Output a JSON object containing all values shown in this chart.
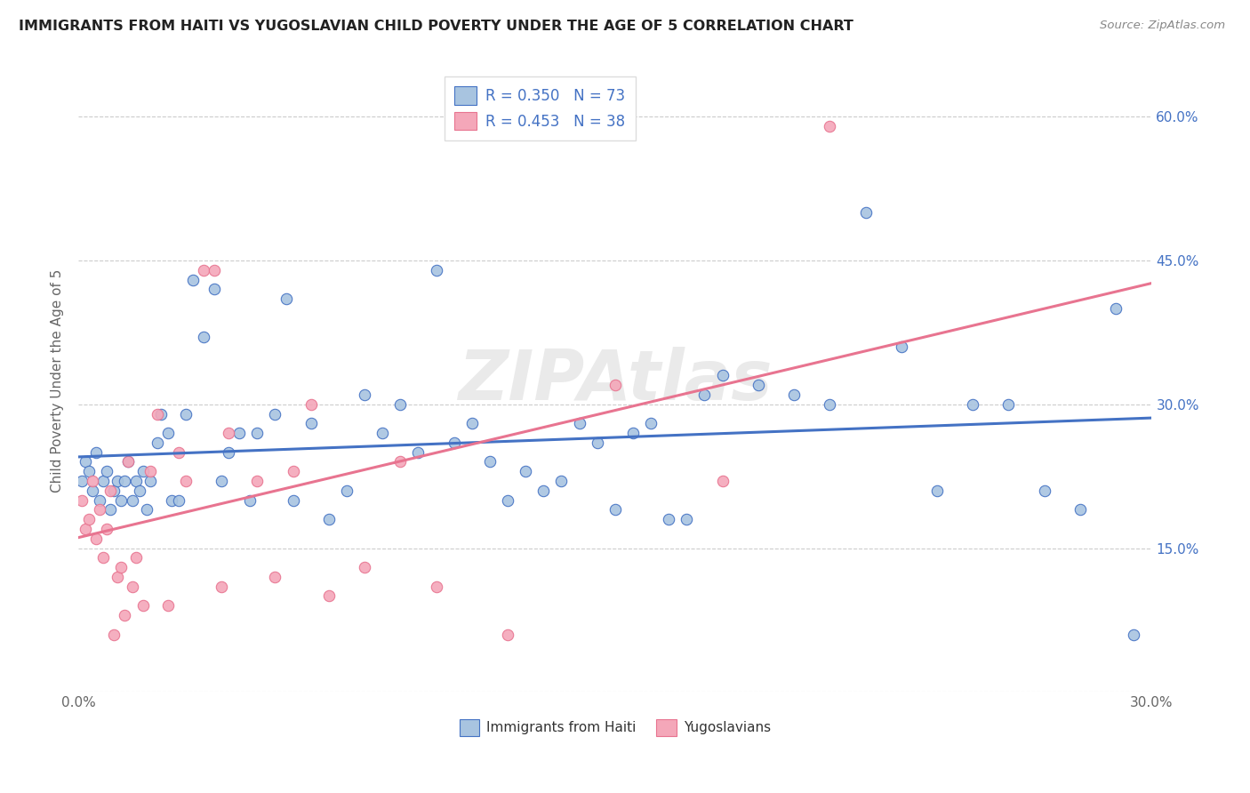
{
  "title": "IMMIGRANTS FROM HAITI VS YUGOSLAVIAN CHILD POVERTY UNDER THE AGE OF 5 CORRELATION CHART",
  "source": "Source: ZipAtlas.com",
  "ylabel": "Child Poverty Under the Age of 5",
  "x_min": 0.0,
  "x_max": 0.3,
  "y_min": 0.0,
  "y_max": 0.65,
  "x_ticks": [
    0.0,
    0.05,
    0.1,
    0.15,
    0.2,
    0.25,
    0.3
  ],
  "y_ticks": [
    0.0,
    0.15,
    0.3,
    0.45,
    0.6
  ],
  "y_tick_labels_right": [
    "",
    "15.0%",
    "30.0%",
    "45.0%",
    "60.0%"
  ],
  "haiti_color": "#a8c4e0",
  "haiti_line_color": "#4472C4",
  "yugo_color": "#f4a7b9",
  "yugo_line_color": "#E87490",
  "R_haiti": 0.35,
  "N_haiti": 73,
  "R_yugo": 0.453,
  "N_yugo": 38,
  "haiti_x": [
    0.001,
    0.002,
    0.003,
    0.004,
    0.005,
    0.006,
    0.007,
    0.008,
    0.009,
    0.01,
    0.011,
    0.012,
    0.013,
    0.014,
    0.015,
    0.016,
    0.017,
    0.018,
    0.019,
    0.02,
    0.022,
    0.023,
    0.025,
    0.026,
    0.028,
    0.03,
    0.032,
    0.035,
    0.038,
    0.04,
    0.042,
    0.045,
    0.048,
    0.05,
    0.055,
    0.058,
    0.06,
    0.065,
    0.07,
    0.075,
    0.08,
    0.085,
    0.09,
    0.095,
    0.1,
    0.105,
    0.11,
    0.115,
    0.12,
    0.125,
    0.13,
    0.135,
    0.14,
    0.145,
    0.15,
    0.155,
    0.16,
    0.165,
    0.17,
    0.175,
    0.18,
    0.19,
    0.2,
    0.21,
    0.22,
    0.23,
    0.24,
    0.25,
    0.26,
    0.27,
    0.28,
    0.29,
    0.295
  ],
  "haiti_y": [
    0.22,
    0.24,
    0.23,
    0.21,
    0.25,
    0.2,
    0.22,
    0.23,
    0.19,
    0.21,
    0.22,
    0.2,
    0.22,
    0.24,
    0.2,
    0.22,
    0.21,
    0.23,
    0.19,
    0.22,
    0.26,
    0.29,
    0.27,
    0.2,
    0.2,
    0.29,
    0.43,
    0.37,
    0.42,
    0.22,
    0.25,
    0.27,
    0.2,
    0.27,
    0.29,
    0.41,
    0.2,
    0.28,
    0.18,
    0.21,
    0.31,
    0.27,
    0.3,
    0.25,
    0.44,
    0.26,
    0.28,
    0.24,
    0.2,
    0.23,
    0.21,
    0.22,
    0.28,
    0.26,
    0.19,
    0.27,
    0.28,
    0.18,
    0.18,
    0.31,
    0.33,
    0.32,
    0.31,
    0.3,
    0.5,
    0.36,
    0.21,
    0.3,
    0.3,
    0.21,
    0.19,
    0.4,
    0.06
  ],
  "yugo_x": [
    0.001,
    0.002,
    0.003,
    0.004,
    0.005,
    0.006,
    0.007,
    0.008,
    0.009,
    0.01,
    0.011,
    0.012,
    0.013,
    0.014,
    0.015,
    0.016,
    0.018,
    0.02,
    0.022,
    0.025,
    0.028,
    0.03,
    0.035,
    0.038,
    0.04,
    0.042,
    0.05,
    0.055,
    0.06,
    0.065,
    0.07,
    0.08,
    0.09,
    0.1,
    0.12,
    0.15,
    0.18,
    0.21
  ],
  "yugo_y": [
    0.2,
    0.17,
    0.18,
    0.22,
    0.16,
    0.19,
    0.14,
    0.17,
    0.21,
    0.06,
    0.12,
    0.13,
    0.08,
    0.24,
    0.11,
    0.14,
    0.09,
    0.23,
    0.29,
    0.09,
    0.25,
    0.22,
    0.44,
    0.44,
    0.11,
    0.27,
    0.22,
    0.12,
    0.23,
    0.3,
    0.1,
    0.13,
    0.24,
    0.11,
    0.06,
    0.32,
    0.22,
    0.59
  ],
  "watermark": "ZIPAtlas",
  "legend_label1": "Immigrants from Haiti",
  "legend_label2": "Yugoslavians",
  "background_color": "#FFFFFF",
  "grid_color": "#CCCCCC"
}
